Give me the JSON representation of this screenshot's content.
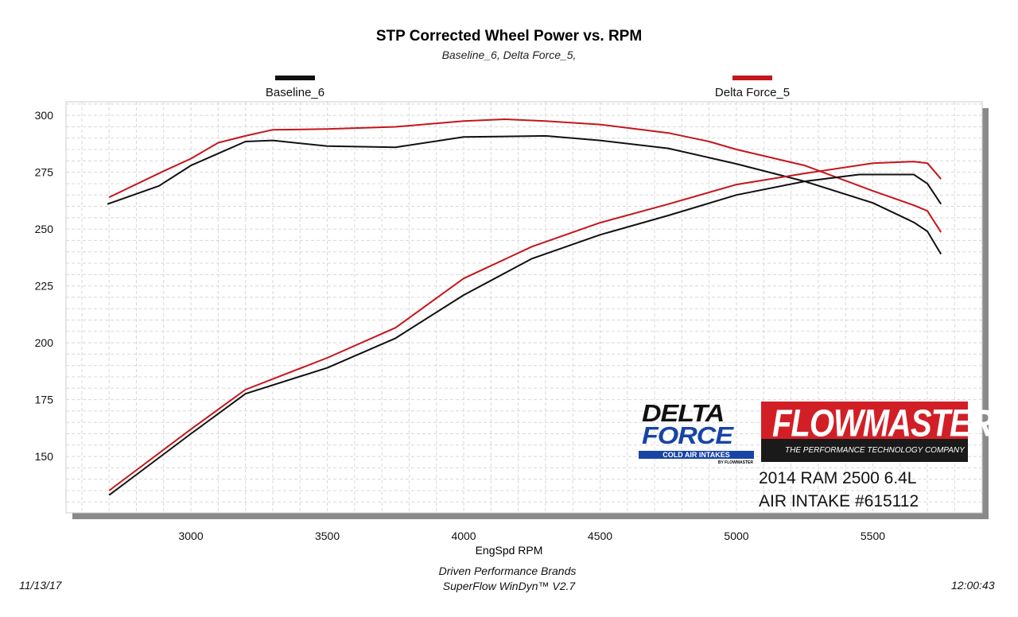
{
  "chart_data": {
    "type": "line",
    "title": "STP Corrected Wheel Power vs. RPM",
    "subtitle": "Baseline_6, Delta Force_5,",
    "xlabel": "EngSpd  RPM",
    "ylabel": "",
    "xlim": [
      2542,
      5901
    ],
    "ylim": [
      125.2,
      306
    ],
    "xticks": [
      3000,
      3500,
      4000,
      4500,
      5000,
      5500
    ],
    "yticks": [
      150,
      175,
      200,
      225,
      250,
      275,
      300
    ],
    "grid": true,
    "legend_placement": "top",
    "series": [
      {
        "name": "Baseline_6",
        "color": "#111111",
        "curve": "upper",
        "x": [
          2694,
          2883,
          3000,
          3200,
          3300,
          3500,
          3750,
          4000,
          4300,
          4500,
          4750,
          5000,
          5250,
          5500,
          5650,
          5700,
          5750
        ],
        "y": [
          261,
          269,
          278,
          288.5,
          289,
          286.5,
          286,
          290.5,
          291,
          289,
          285.5,
          278.7,
          271,
          261.5,
          253,
          249,
          239
        ]
      },
      {
        "name": "Delta Force_5",
        "color": "#c4161c",
        "curve": "upper",
        "x": [
          2700,
          2900,
          3000,
          3100,
          3200,
          3300,
          3500,
          3750,
          4000,
          4150,
          4300,
          4500,
          4750,
          4900,
          5000,
          5250,
          5500,
          5650,
          5700,
          5750
        ],
        "y": [
          264,
          275.5,
          281,
          288,
          291,
          293.7,
          294,
          295,
          297.5,
          298.3,
          297.5,
          296,
          292.3,
          288.5,
          285,
          278,
          266.8,
          260.5,
          258,
          248.6
        ]
      },
      {
        "name": "Baseline_6",
        "color": "#111111",
        "curve": "lower",
        "x": [
          2700,
          2800,
          3000,
          3200,
          3500,
          3750,
          4000,
          4250,
          4500,
          4750,
          5000,
          5250,
          5450,
          5650,
          5700,
          5750
        ],
        "y": [
          133,
          142,
          160,
          177.6,
          189,
          202,
          221,
          237,
          247.5,
          256,
          265,
          271,
          274,
          274,
          270,
          261
        ]
      },
      {
        "name": "Delta Force_5",
        "color": "#c4161c",
        "curve": "lower",
        "x": [
          2700,
          3000,
          3200,
          3500,
          3750,
          4000,
          4250,
          4500,
          4750,
          5000,
          5250,
          5500,
          5650,
          5700,
          5750
        ],
        "y": [
          135,
          162,
          179.4,
          193.4,
          206.6,
          228.3,
          242.3,
          252.8,
          261,
          269.6,
          274.5,
          279,
          279.7,
          279,
          272
        ]
      }
    ]
  },
  "legend": [
    {
      "label": "Baseline_6",
      "color": "#111111"
    },
    {
      "label": "Delta Force_5",
      "color": "#c4161c"
    }
  ],
  "footer": {
    "date": "11/13/17",
    "company": "Driven Performance Brands",
    "software": "SuperFlow WinDyn™  V2.7",
    "time": "12:00:43"
  },
  "logos": {
    "delta_force": {
      "line1": "DELTA",
      "line2": "FORCE",
      "line3": "COLD AIR INTAKES",
      "line4": "BY FLOWMASTER"
    },
    "flowmaster": {
      "name": "FLOWMASTER",
      "tagline": "THE PERFORMANCE TECHNOLOGY COMPANY"
    }
  },
  "annotation": {
    "line1": "2014 RAM 2500 6.4L",
    "line2": "AIR INTAKE #615112"
  }
}
